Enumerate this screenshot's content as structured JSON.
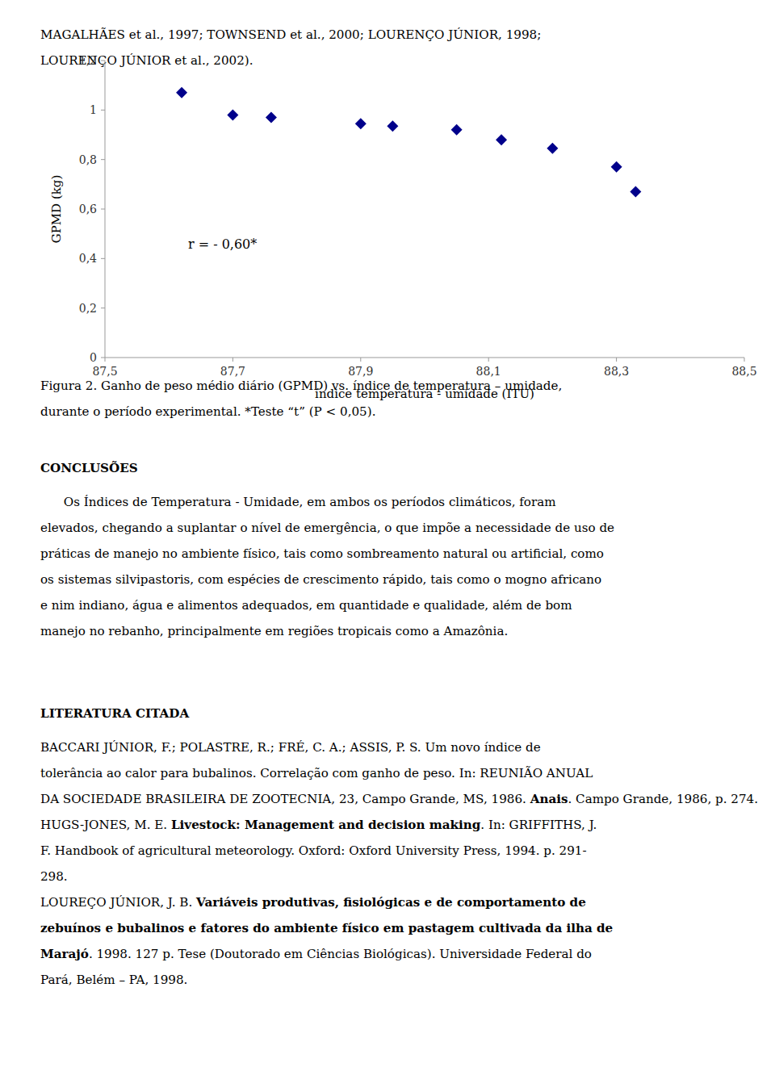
{
  "header_lines": [
    "MAGALHÃES et al., 1997; TOWNSEND et al., 2000; LOURENÇO JÚNIOR, 1998;",
    "LOURENÇO JÚNIOR et al., 2002)."
  ],
  "chart_data": {
    "type": "scatter",
    "x": [
      87.62,
      87.7,
      87.76,
      87.9,
      87.95,
      88.05,
      88.12,
      88.2,
      88.3,
      88.33
    ],
    "values": [
      1.07,
      0.98,
      0.97,
      0.945,
      0.935,
      0.92,
      0.88,
      0.845,
      0.77,
      0.67
    ],
    "color": "#00008B",
    "marker": "diamond",
    "xlabel": "índice temperatura - umidade (ITU)",
    "ylabel": "GPMD (kg)",
    "annotations": [
      {
        "text": "r = - 0,60*",
        "x": 87.63,
        "y": 0.44
      }
    ],
    "xlim": [
      87.5,
      88.5
    ],
    "ylim": [
      0,
      1.2
    ],
    "xticks": [
      {
        "value": 87.5,
        "label": "87,5"
      },
      {
        "value": 87.7,
        "label": "87,7"
      },
      {
        "value": 87.9,
        "label": "87,9"
      },
      {
        "value": 88.1,
        "label": "88,1"
      },
      {
        "value": 88.3,
        "label": "88,3"
      },
      {
        "value": 88.5,
        "label": "88,5"
      }
    ],
    "yticks": [
      0,
      {
        "value": 0.2,
        "label": "0,2"
      },
      {
        "value": 0.4,
        "label": "0,4"
      },
      {
        "value": 0.6,
        "label": "0,6"
      },
      {
        "value": 0.8,
        "label": "0,8"
      },
      1,
      {
        "value": 1.2,
        "label": "1,2"
      }
    ],
    "grid": false
  },
  "caption_lines": [
    "Figura 2. Ganho de peso médio diário (GPMD) vs. índice de temperatura – umidade,",
    "durante o período experimental. *Teste “t” (P < 0,05)."
  ],
  "conclusions": {
    "title": "CONCLUSÕES",
    "lines": [
      "      Os Índices de Temperatura - Umidade, em ambos os períodos climáticos, foram",
      "elevados, chegando a suplantar o nível de emergência, o que impõe a necessidade de uso de",
      "práticas de manejo no ambiente físico, tais como sombreamento natural ou artificial, como",
      "os sistemas silvipastoris, com espécies de crescimento rápido, tais como o mogno africano",
      "e nim indiano, água e alimentos adequados, em quantidade e qualidade, além de bom",
      "manejo no rebanho, principalmente em regiões tropicais como a Amazônia."
    ]
  },
  "literature": {
    "title": "LITERATURA CITADA",
    "references": [
      {
        "lines": [
          [
            {
              "text": "BACCARI JÚNIOR, F.; POLASTRE, R.; FRÉ, C. A.; ASSIS, P. S. Um novo índice de",
              "bold": false
            }
          ],
          [
            {
              "text": "tolerância ao calor para bubalinos. Correlação com ganho de peso. In: REUNIÃO ANUAL",
              "bold": false
            }
          ],
          [
            {
              "text": "DA SOCIEDADE BRASILEIRA DE ZOOTECNIA, 23, Campo Grande, MS, 1986. ",
              "bold": false
            },
            {
              "text": "Anais",
              "bold": true
            },
            {
              "text": ". Campo Grande, 1986, p. 274.",
              "bold": false
            }
          ]
        ]
      },
      {
        "lines": [
          [
            {
              "text": "HUGS-JONES, M. E. ",
              "bold": false
            },
            {
              "text": "Livestock: Management and decision making",
              "bold": true
            },
            {
              "text": ". In: GRIFFITHS, J.",
              "bold": false
            }
          ],
          [
            {
              "text": "F. Handbook of agricultural meteorology. Oxford: Oxford University Press, 1994. p. 291-",
              "bold": false
            }
          ],
          [
            {
              "text": "298.",
              "bold": false
            }
          ]
        ]
      },
      {
        "lines": [
          [
            {
              "text": "LOUREÇO JÚNIOR, J. B. ",
              "bold": false
            },
            {
              "text": "Variáveis produtivas, fisiológicas e de comportamento de",
              "bold": true
            }
          ],
          [
            {
              "text": "zebuínos e bubalinos e fatores do ambiente físico em pastagem cultivada da ilha de",
              "bold": true
            }
          ],
          [
            {
              "text": "Marajó",
              "bold": true
            },
            {
              "text": ". 1998. 127 p. Tese (Doutorado em Ciências Biológicas). Universidade Federal do",
              "bold": false
            }
          ],
          [
            {
              "text": "Pará, Belém – PA, 1998.",
              "bold": false
            }
          ]
        ]
      }
    ]
  }
}
